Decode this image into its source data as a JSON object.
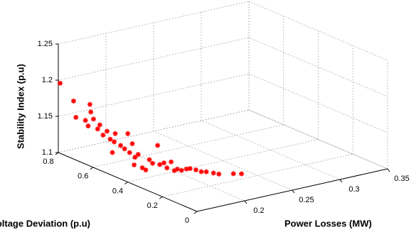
{
  "chart_data": {
    "type": "scatter3d",
    "xlabel": "Power Losses (MW)",
    "ylabel": "Voltage Deviation (p.u)",
    "zlabel": "Stability Index (p.u)",
    "xlim": [
      0.15,
      0.35
    ],
    "ylim": [
      0,
      0.8
    ],
    "zlim": [
      1.1,
      1.25
    ],
    "xticks": [
      0.2,
      0.25,
      0.3,
      0.35
    ],
    "yticks": [
      0,
      0.2,
      0.4,
      0.6,
      0.8
    ],
    "zticks": [
      1.1,
      1.15,
      1.2,
      1.25
    ],
    "grid": true,
    "series": [
      {
        "color": "#ff0000",
        "x": [
          0.151,
          0.156,
          0.157,
          0.163,
          0.163,
          0.161,
          0.162,
          0.164,
          0.166,
          0.167,
          0.168,
          0.17,
          0.171,
          0.173,
          0.173,
          0.175,
          0.177,
          0.178,
          0.179,
          0.18,
          0.181,
          0.182,
          0.169,
          0.169,
          0.187,
          0.188,
          0.19,
          0.191,
          0.193,
          0.194,
          0.196,
          0.197,
          0.198,
          0.2,
          0.202,
          0.203,
          0.206,
          0.208,
          0.21,
          0.213,
          0.215,
          0.221,
          0.224,
          0.172,
          0.181
        ],
        "y": [
          0.795,
          0.745,
          0.737,
          0.689,
          0.684,
          0.704,
          0.694,
          0.674,
          0.661,
          0.654,
          0.641,
          0.629,
          0.616,
          0.604,
          0.598,
          0.578,
          0.566,
          0.553,
          0.548,
          0.538,
          0.528,
          0.515,
          0.42,
          0.4,
          0.478,
          0.465,
          0.447,
          0.44,
          0.427,
          0.415,
          0.402,
          0.389,
          0.377,
          0.364,
          0.347,
          0.331,
          0.314,
          0.294,
          0.276,
          0.251,
          0.231,
          0.18,
          0.15,
          0.609,
          0.533
        ],
        "z": [
          1.196,
          1.175,
          1.153,
          1.174,
          1.164,
          1.151,
          1.144,
          1.155,
          1.142,
          1.148,
          1.135,
          1.141,
          1.131,
          1.128,
          1.14,
          1.125,
          1.121,
          1.143,
          1.117,
          1.13,
          1.112,
          1.117,
          1.112,
          1.111,
          1.112,
          1.108,
          1.134,
          1.108,
          1.111,
          1.105,
          1.114,
          1.103,
          1.106,
          1.105,
          1.108,
          1.11,
          1.109,
          1.108,
          1.109,
          1.109,
          1.109,
          1.113,
          1.115,
          1.113,
          1.101
        ]
      }
    ]
  }
}
